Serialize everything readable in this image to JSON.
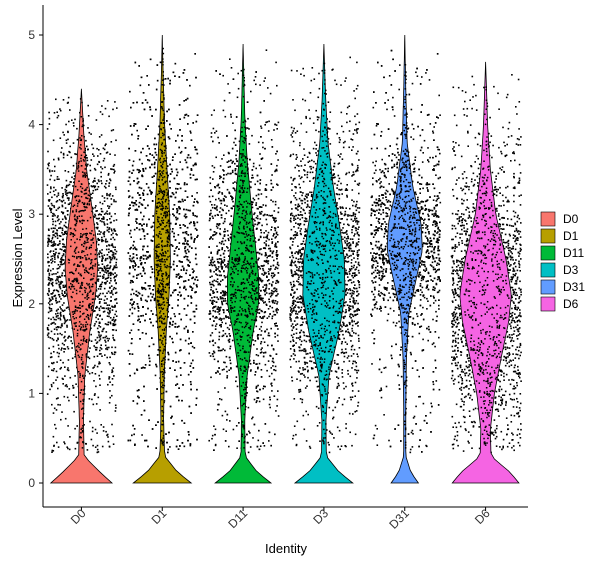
{
  "chart_data": {
    "type": "violin",
    "xlabel": "Identity",
    "ylabel": "Expression Level",
    "ylim": [
      -0.3,
      5.3
    ],
    "y_ticks": [
      0,
      1,
      2,
      3,
      4,
      5
    ],
    "grid": false,
    "legend_position": "right",
    "points_shown": true,
    "categories": [
      "D0",
      "D1",
      "D11",
      "D3",
      "D31",
      "D6"
    ],
    "series": [
      {
        "name": "D0",
        "color": "#F8766D",
        "max": 4.4,
        "zero_fraction_high": true,
        "density": [
          [
            0,
            0.9
          ],
          [
            0.12,
            0.55
          ],
          [
            0.3,
            0.08
          ],
          [
            0.7,
            0.06
          ],
          [
            1.2,
            0.1
          ],
          [
            1.7,
            0.25
          ],
          [
            2.1,
            0.42
          ],
          [
            2.4,
            0.48
          ],
          [
            2.7,
            0.44
          ],
          [
            3.1,
            0.3
          ],
          [
            3.5,
            0.15
          ],
          [
            3.9,
            0.07
          ],
          [
            4.4,
            0.0
          ]
        ]
      },
      {
        "name": "D1",
        "color": "#B79F00",
        "max": 5.0,
        "zero_fraction_high": true,
        "density": [
          [
            0,
            0.85
          ],
          [
            0.12,
            0.45
          ],
          [
            0.3,
            0.07
          ],
          [
            0.7,
            0.04
          ],
          [
            1.2,
            0.06
          ],
          [
            1.7,
            0.12
          ],
          [
            2.1,
            0.2
          ],
          [
            2.5,
            0.24
          ],
          [
            3.0,
            0.22
          ],
          [
            3.5,
            0.14
          ],
          [
            4.0,
            0.07
          ],
          [
            4.5,
            0.03
          ],
          [
            5.0,
            0.0
          ]
        ]
      },
      {
        "name": "D11",
        "color": "#00BA38",
        "max": 4.9,
        "zero_fraction_high": true,
        "density": [
          [
            0,
            0.82
          ],
          [
            0.12,
            0.42
          ],
          [
            0.3,
            0.06
          ],
          [
            0.7,
            0.05
          ],
          [
            1.2,
            0.12
          ],
          [
            1.7,
            0.3
          ],
          [
            2.0,
            0.46
          ],
          [
            2.3,
            0.46
          ],
          [
            2.7,
            0.35
          ],
          [
            3.1,
            0.24
          ],
          [
            3.6,
            0.12
          ],
          [
            4.1,
            0.05
          ],
          [
            4.9,
            0.0
          ]
        ]
      },
      {
        "name": "D3",
        "color": "#00BFC4",
        "max": 4.9,
        "zero_fraction_high": true,
        "density": [
          [
            0,
            0.85
          ],
          [
            0.12,
            0.45
          ],
          [
            0.3,
            0.07
          ],
          [
            0.7,
            0.06
          ],
          [
            1.2,
            0.15
          ],
          [
            1.7,
            0.45
          ],
          [
            2.1,
            0.62
          ],
          [
            2.5,
            0.6
          ],
          [
            2.9,
            0.45
          ],
          [
            3.3,
            0.28
          ],
          [
            3.8,
            0.12
          ],
          [
            4.3,
            0.05
          ],
          [
            4.9,
            0.0
          ]
        ]
      },
      {
        "name": "D31",
        "color": "#619CFF",
        "max": 5.0,
        "zero_fraction_high": false,
        "density": [
          [
            0,
            0.4
          ],
          [
            0.12,
            0.18
          ],
          [
            0.3,
            0.03
          ],
          [
            0.8,
            0.03
          ],
          [
            1.4,
            0.05
          ],
          [
            1.9,
            0.12
          ],
          [
            2.3,
            0.35
          ],
          [
            2.6,
            0.52
          ],
          [
            2.9,
            0.48
          ],
          [
            3.3,
            0.24
          ],
          [
            3.8,
            0.07
          ],
          [
            4.4,
            0.03
          ],
          [
            5.0,
            0.0
          ]
        ]
      },
      {
        "name": "D6",
        "color": "#F564E3",
        "max": 4.7,
        "zero_fraction_high": true,
        "density": [
          [
            0,
            0.98
          ],
          [
            0.12,
            0.72
          ],
          [
            0.3,
            0.16
          ],
          [
            0.6,
            0.14
          ],
          [
            1.0,
            0.26
          ],
          [
            1.4,
            0.46
          ],
          [
            1.8,
            0.68
          ],
          [
            2.1,
            0.76
          ],
          [
            2.5,
            0.6
          ],
          [
            3.0,
            0.3
          ],
          [
            3.5,
            0.14
          ],
          [
            4.0,
            0.06
          ],
          [
            4.7,
            0.0
          ]
        ]
      }
    ]
  },
  "legend": {
    "items": [
      {
        "label": "D0",
        "color": "#F8766D"
      },
      {
        "label": "D1",
        "color": "#B79F00"
      },
      {
        "label": "D11",
        "color": "#00BA38"
      },
      {
        "label": "D3",
        "color": "#00BFC4"
      },
      {
        "label": "D31",
        "color": "#619CFF"
      },
      {
        "label": "D6",
        "color": "#F564E3"
      }
    ]
  }
}
